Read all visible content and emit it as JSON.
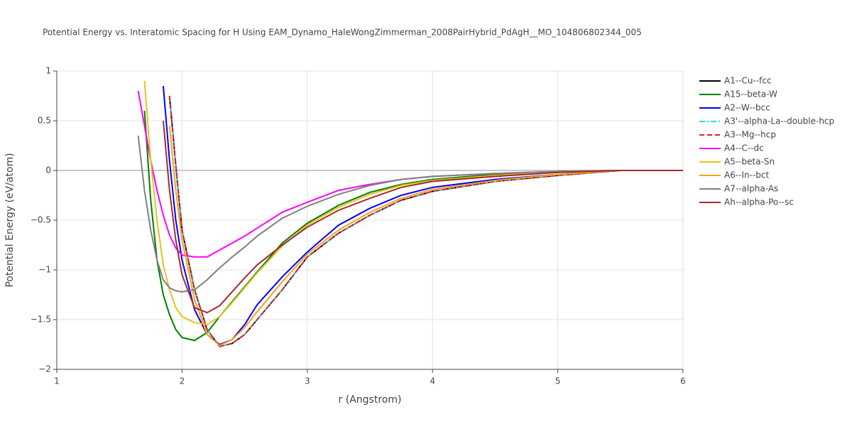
{
  "chart_data": {
    "type": "line",
    "title": "Potential Energy vs. Interatomic Spacing for H Using EAM_Dynamo_HaleWongZimmerman_2008PairHybrid_PdAgH__MO_104806802344_005",
    "x_label": "r (Angstrom)",
    "y_label": "Potential Energy (eV/atom)",
    "x": [
      1.6,
      1.65,
      1.7,
      1.75,
      1.8,
      1.85,
      1.9,
      1.95,
      2.0,
      2.1,
      2.2,
      2.3,
      2.4,
      2.5,
      2.6,
      2.8,
      3.0,
      3.25,
      3.5,
      3.75,
      4.0,
      4.5,
      5.0,
      5.5,
      6.0
    ],
    "xlim": [
      1,
      6
    ],
    "xticks": [
      1,
      2,
      3,
      4,
      5,
      6
    ],
    "ylim": [
      -2,
      1
    ],
    "yticks": [
      {
        "value": -2,
        "label": "−2"
      },
      {
        "value": -1.5,
        "label": "−1.5"
      },
      {
        "value": -1,
        "label": "−1"
      },
      {
        "value": -0.5,
        "label": "−0.5"
      },
      0,
      0.5,
      1
    ],
    "grid": true,
    "legend": "outside-right",
    "series": [
      {
        "name": "A1--Cu--fcc",
        "color": "#000000",
        "dash": "solid",
        "values": [
          null,
          null,
          null,
          null,
          null,
          null,
          0.75,
          0.05,
          -0.6,
          -1.2,
          -1.6,
          -1.77,
          -1.74,
          -1.65,
          -1.5,
          -1.2,
          -0.87,
          -0.63,
          -0.45,
          -0.3,
          -0.21,
          -0.11,
          -0.05,
          0,
          0
        ]
      },
      {
        "name": "A15--beta-W",
        "color": "#008000",
        "dash": "solid",
        "values": [
          null,
          null,
          0.6,
          -0.3,
          -0.9,
          -1.25,
          -1.45,
          -1.6,
          -1.68,
          -1.71,
          -1.63,
          -1.47,
          -1.32,
          -1.17,
          -1.02,
          -0.73,
          -0.53,
          -0.35,
          -0.22,
          -0.14,
          -0.09,
          -0.04,
          -0.01,
          0,
          0
        ]
      },
      {
        "name": "A2--W--bcc",
        "color": "#0000ff",
        "dash": "solid",
        "values": [
          null,
          null,
          null,
          null,
          null,
          0.85,
          0.1,
          -0.5,
          -0.9,
          -1.4,
          -1.65,
          -1.75,
          -1.7,
          -1.55,
          -1.35,
          -1.07,
          -0.82,
          -0.55,
          -0.38,
          -0.25,
          -0.17,
          -0.09,
          -0.04,
          0,
          0
        ]
      },
      {
        "name": "A3'--alpha-La--double-hcp",
        "color": "#00e5ee",
        "dash": "dashdot",
        "values": [
          null,
          null,
          null,
          null,
          null,
          null,
          0.75,
          0.05,
          -0.6,
          -1.2,
          -1.6,
          -1.77,
          -1.74,
          -1.65,
          -1.5,
          -1.2,
          -0.87,
          -0.63,
          -0.45,
          -0.3,
          -0.21,
          -0.11,
          -0.05,
          0,
          0
        ]
      },
      {
        "name": "A3--Mg--hcp",
        "color": "#e8211e",
        "dash": "dash",
        "values": [
          null,
          null,
          null,
          null,
          null,
          null,
          0.75,
          0.05,
          -0.6,
          -1.2,
          -1.6,
          -1.77,
          -1.74,
          -1.65,
          -1.5,
          -1.2,
          -0.87,
          -0.63,
          -0.45,
          -0.3,
          -0.21,
          -0.11,
          -0.05,
          0,
          0
        ]
      },
      {
        "name": "A4--C--dc",
        "color": "#ff00ff",
        "dash": "solid",
        "values": [
          null,
          0.8,
          0.45,
          0.1,
          -0.2,
          -0.45,
          -0.65,
          -0.78,
          -0.85,
          -0.87,
          -0.87,
          -0.8,
          -0.73,
          -0.66,
          -0.58,
          -0.42,
          -0.32,
          -0.2,
          -0.14,
          -0.09,
          -0.06,
          -0.03,
          -0.01,
          0,
          0
        ]
      },
      {
        "name": "A5--beta-Sn",
        "color": "#e8c21e",
        "dash": "solid",
        "values": [
          null,
          null,
          0.9,
          0.1,
          -0.5,
          -0.95,
          -1.2,
          -1.38,
          -1.47,
          -1.53,
          -1.55,
          -1.47,
          -1.33,
          -1.18,
          -1.03,
          -0.76,
          -0.55,
          -0.37,
          -0.24,
          -0.15,
          -0.1,
          -0.05,
          -0.02,
          0,
          0
        ]
      },
      {
        "name": "A6--In--bct",
        "color": "#f5a21e",
        "dash": "solid",
        "values": [
          null,
          null,
          null,
          null,
          null,
          null,
          0.45,
          -0.2,
          -0.7,
          -1.3,
          -1.65,
          -1.76,
          -1.7,
          -1.58,
          -1.42,
          -1.12,
          -0.84,
          -0.6,
          -0.42,
          -0.28,
          -0.19,
          -0.1,
          -0.04,
          0,
          0
        ]
      },
      {
        "name": "A7--alpha-As",
        "color": "#808080",
        "dash": "solid",
        "values": [
          null,
          0.35,
          -0.2,
          -0.6,
          -0.9,
          -1.1,
          -1.18,
          -1.21,
          -1.22,
          -1.2,
          -1.1,
          -0.98,
          -0.87,
          -0.77,
          -0.66,
          -0.48,
          -0.36,
          -0.24,
          -0.15,
          -0.09,
          -0.06,
          -0.03,
          -0.01,
          0,
          0
        ]
      },
      {
        "name": "Ah--alpha-Po--sc",
        "color": "#a52a2a",
        "dash": "solid",
        "values": [
          null,
          null,
          null,
          null,
          null,
          0.5,
          -0.2,
          -0.7,
          -1.05,
          -1.38,
          -1.43,
          -1.36,
          -1.22,
          -1.08,
          -0.95,
          -0.75,
          -0.57,
          -0.4,
          -0.28,
          -0.17,
          -0.11,
          -0.06,
          -0.02,
          0,
          0
        ]
      }
    ]
  }
}
